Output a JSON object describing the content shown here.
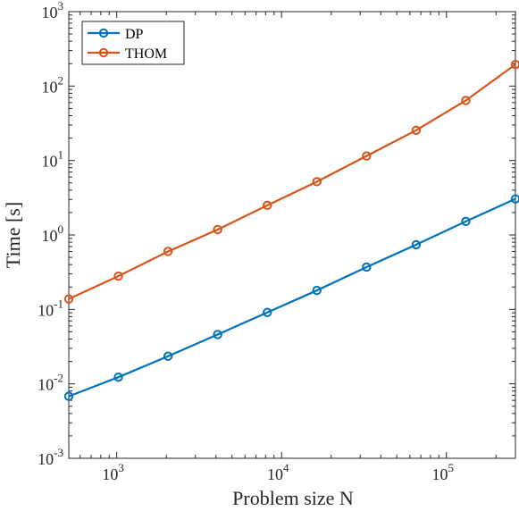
{
  "chart_data": {
    "type": "line",
    "xlabel": "Problem size N",
    "ylabel": "Time [s]",
    "x_scale": "log",
    "y_scale": "log",
    "xlim": [
      512,
      262144
    ],
    "ylim": [
      0.001,
      1000
    ],
    "grid": false,
    "legend_position": "top-left",
    "x": [
      512,
      1024,
      2048,
      4096,
      8192,
      16384,
      32768,
      65536,
      131072,
      262144
    ],
    "x_ticks": [
      {
        "value": 1000,
        "base": "10",
        "exp": "3"
      },
      {
        "value": 10000,
        "base": "10",
        "exp": "4"
      },
      {
        "value": 100000,
        "base": "10",
        "exp": "5"
      }
    ],
    "y_ticks": [
      {
        "value": 0.001,
        "base": "10",
        "exp": "-3"
      },
      {
        "value": 0.01,
        "base": "10",
        "exp": "-2"
      },
      {
        "value": 0.1,
        "base": "10",
        "exp": "-1"
      },
      {
        "value": 1,
        "base": "10",
        "exp": "0"
      },
      {
        "value": 10,
        "base": "10",
        "exp": "1"
      },
      {
        "value": 100,
        "base": "10",
        "exp": "2"
      },
      {
        "value": 1000,
        "base": "10",
        "exp": "3"
      }
    ],
    "series": [
      {
        "name": "DP",
        "color": "#0072BD",
        "values": [
          0.0068,
          0.0123,
          0.0235,
          0.046,
          0.091,
          0.18,
          0.37,
          0.74,
          1.52,
          3.05
        ]
      },
      {
        "name": "THOM",
        "color": "#D95319",
        "values": [
          0.138,
          0.28,
          0.6,
          1.18,
          2.5,
          5.2,
          11.5,
          25.5,
          64.0,
          195.0
        ]
      }
    ]
  }
}
